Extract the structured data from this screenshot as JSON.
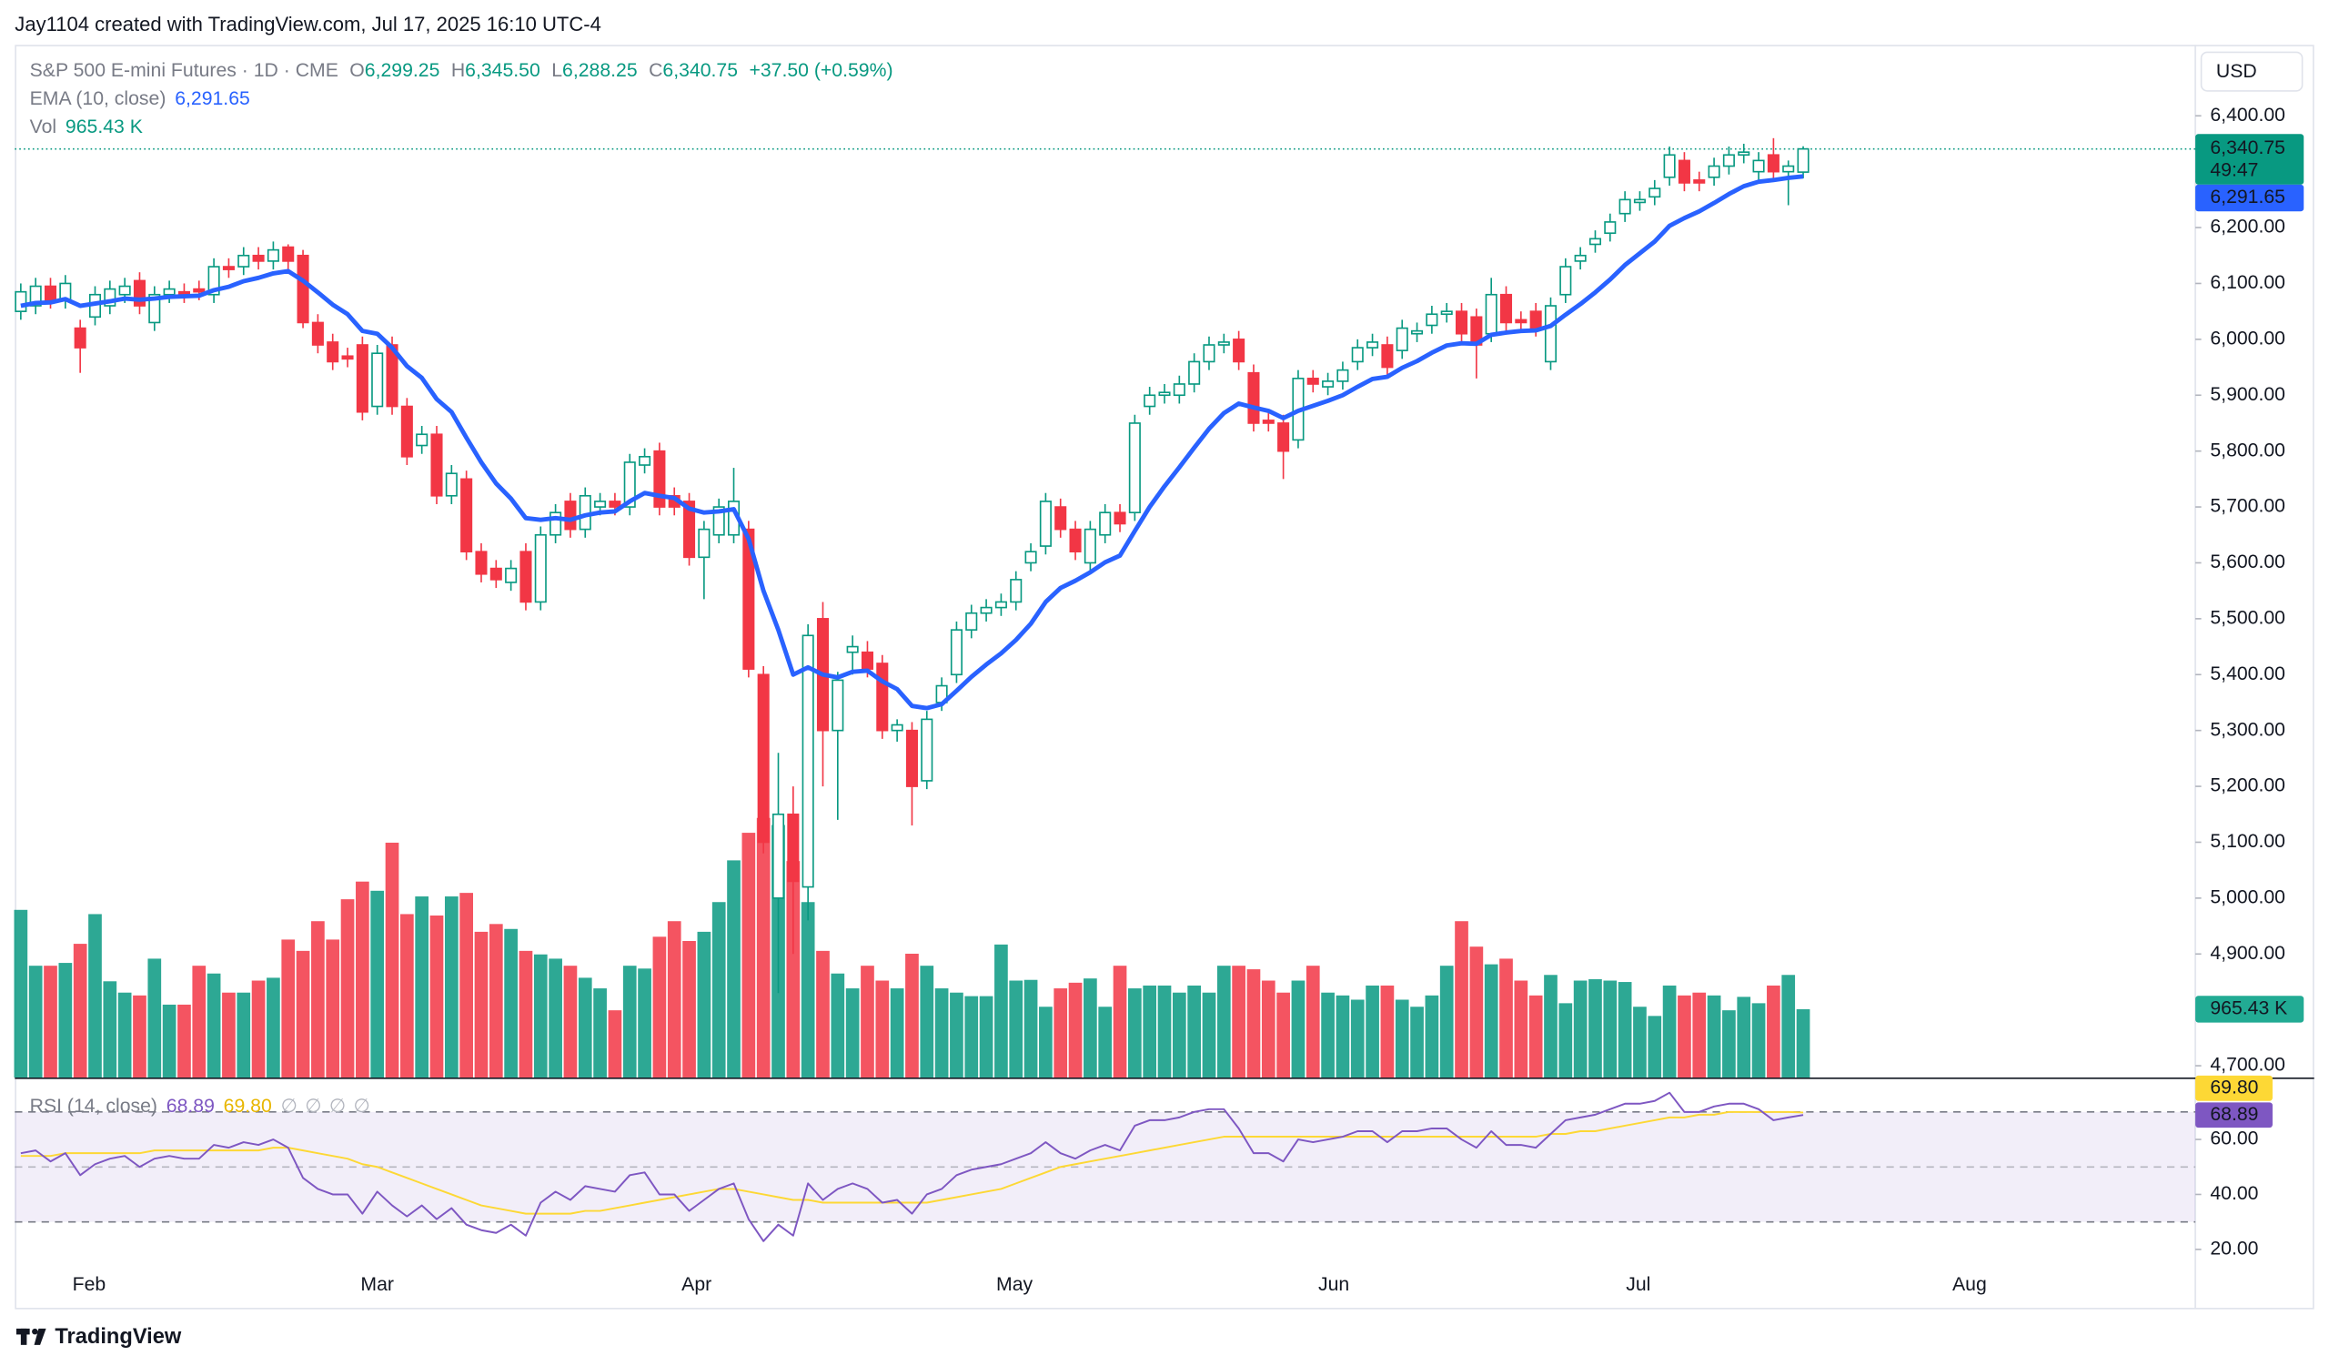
{
  "credit": "Jay1104 created with TradingView.com, Jul 17, 2025 16:10 UTC-4",
  "brand": "TradingView",
  "currency": "USD",
  "chart_data": {
    "type": "candlestick",
    "title": "S&P 500 E-mini Futures · 1D · CME",
    "quote": {
      "O": "O",
      "open": "6,299.25",
      "H": "H",
      "high": "6,345.50",
      "L": "L",
      "low": "6,288.25",
      "C": "C",
      "close": "6,340.75",
      "change": "+37.50 (+0.59%)"
    },
    "countdown": "49:47",
    "ema_title": "EMA (10, close)",
    "ema_label": "6,291.65",
    "vol_title": "Vol",
    "volume_label": "965.43 K",
    "rsi_title": "RSI (14, close)",
    "rsi_label": "68.89",
    "rsi_ma_label": "69.80",
    "rsi_extras": [
      "∅",
      "∅",
      "∅",
      "∅"
    ],
    "x_labels": [
      "Feb",
      "Mar",
      "Apr",
      "May",
      "Jun",
      "Jul",
      "Aug"
    ],
    "up_color": "#089981",
    "down_color": "#f23645",
    "ema_color": "#2962ff",
    "rsi_color": "#7e57c2",
    "rsi_ma_color": "#fdd835",
    "ylim": [
      4679,
      6527
    ],
    "yticks": [
      {
        "value": 6400,
        "label": "6,400.00"
      },
      {
        "value": 6300,
        "label": "6,300.00"
      },
      {
        "value": 6200,
        "label": "6,200.00"
      },
      {
        "value": 6100,
        "label": "6,100.00"
      },
      {
        "value": 6000,
        "label": "6,000.00"
      },
      {
        "value": 5900,
        "label": "5,900.00"
      },
      {
        "value": 5800,
        "label": "5,800.00"
      },
      {
        "value": 5700,
        "label": "5,700.00"
      },
      {
        "value": 5600,
        "label": "5,600.00"
      },
      {
        "value": 5500,
        "label": "5,500.00"
      },
      {
        "value": 5400,
        "label": "5,400.00"
      },
      {
        "value": 5300,
        "label": "5,300.00"
      },
      {
        "value": 5200,
        "label": "5,200.00"
      },
      {
        "value": 5100,
        "label": "5,100.00"
      },
      {
        "value": 5000,
        "label": "5,000.00"
      },
      {
        "value": 4900,
        "label": "4,900.00"
      },
      {
        "value": 4700,
        "label": "4,700.00"
      }
    ],
    "rsi_ylim": [
      12,
      82
    ],
    "rsi_yticks": [
      {
        "value": 60,
        "label": "60.00"
      },
      {
        "value": 40,
        "label": "40.00"
      },
      {
        "value": 20,
        "label": "20.00"
      }
    ],
    "rsi_levels": [
      70,
      50,
      30
    ],
    "ohlc": [
      [
        6050,
        6100,
        6035,
        6085
      ],
      [
        6060,
        6110,
        6045,
        6095
      ],
      [
        6095,
        6110,
        6055,
        6070
      ],
      [
        6070,
        6115,
        6055,
        6100
      ],
      [
        6020,
        6035,
        5940,
        5985
      ],
      [
        6040,
        6095,
        6025,
        6080
      ],
      [
        6060,
        6105,
        6045,
        6090
      ],
      [
        6080,
        6110,
        6065,
        6095
      ],
      [
        6105,
        6120,
        6045,
        6060
      ],
      [
        6030,
        6095,
        6015,
        6080
      ],
      [
        6080,
        6105,
        6065,
        6090
      ],
      [
        6085,
        6100,
        6065,
        6080
      ],
      [
        6090,
        6105,
        6070,
        6085
      ],
      [
        6080,
        6145,
        6065,
        6130
      ],
      [
        6130,
        6145,
        6110,
        6125
      ],
      [
        6130,
        6165,
        6115,
        6150
      ],
      [
        6150,
        6165,
        6125,
        6140
      ],
      [
        6140,
        6175,
        6125,
        6160
      ],
      [
        6165,
        6170,
        6125,
        6140
      ],
      [
        6150,
        6160,
        6020,
        6030
      ],
      [
        6030,
        6045,
        5975,
        5990
      ],
      [
        5995,
        6010,
        5945,
        5960
      ],
      [
        5970,
        5985,
        5950,
        5965
      ],
      [
        5990,
        6005,
        5855,
        5870
      ],
      [
        5880,
        5990,
        5865,
        5975
      ],
      [
        5990,
        6005,
        5865,
        5880
      ],
      [
        5880,
        5895,
        5775,
        5790
      ],
      [
        5810,
        5845,
        5795,
        5830
      ],
      [
        5830,
        5845,
        5705,
        5720
      ],
      [
        5720,
        5775,
        5705,
        5760
      ],
      [
        5750,
        5765,
        5605,
        5620
      ],
      [
        5620,
        5635,
        5565,
        5580
      ],
      [
        5590,
        5605,
        5555,
        5570
      ],
      [
        5565,
        5605,
        5550,
        5590
      ],
      [
        5620,
        5635,
        5515,
        5530
      ],
      [
        5530,
        5665,
        5515,
        5650
      ],
      [
        5650,
        5705,
        5635,
        5690
      ],
      [
        5710,
        5725,
        5645,
        5660
      ],
      [
        5660,
        5735,
        5645,
        5720
      ],
      [
        5700,
        5725,
        5685,
        5710
      ],
      [
        5710,
        5725,
        5685,
        5700
      ],
      [
        5700,
        5795,
        5685,
        5780
      ],
      [
        5775,
        5805,
        5760,
        5790
      ],
      [
        5800,
        5815,
        5685,
        5700
      ],
      [
        5720,
        5735,
        5685,
        5700
      ],
      [
        5710,
        5725,
        5595,
        5610
      ],
      [
        5610,
        5675,
        5535,
        5660
      ],
      [
        5650,
        5715,
        5635,
        5700
      ],
      [
        5650,
        5770,
        5635,
        5710
      ],
      [
        5660,
        5675,
        5395,
        5410
      ],
      [
        5400,
        5415,
        5080,
        5100
      ],
      [
        5000,
        5260,
        4830,
        5150
      ],
      [
        5150,
        5200,
        4900,
        5030
      ],
      [
        5020,
        5490,
        4960,
        5470
      ],
      [
        5500,
        5530,
        5200,
        5300
      ],
      [
        5300,
        5405,
        5140,
        5390
      ],
      [
        5440,
        5470,
        5400,
        5450
      ],
      [
        5440,
        5460,
        5395,
        5410
      ],
      [
        5420,
        5435,
        5285,
        5300
      ],
      [
        5300,
        5320,
        5280,
        5310
      ],
      [
        5300,
        5315,
        5130,
        5200
      ],
      [
        5210,
        5335,
        5195,
        5320
      ],
      [
        5350,
        5395,
        5335,
        5380
      ],
      [
        5400,
        5495,
        5385,
        5480
      ],
      [
        5480,
        5525,
        5465,
        5510
      ],
      [
        5510,
        5535,
        5495,
        5520
      ],
      [
        5520,
        5545,
        5505,
        5530
      ],
      [
        5530,
        5585,
        5515,
        5570
      ],
      [
        5600,
        5635,
        5585,
        5620
      ],
      [
        5630,
        5725,
        5615,
        5710
      ],
      [
        5700,
        5715,
        5645,
        5660
      ],
      [
        5660,
        5675,
        5605,
        5620
      ],
      [
        5600,
        5675,
        5585,
        5660
      ],
      [
        5650,
        5705,
        5635,
        5690
      ],
      [
        5690,
        5705,
        5655,
        5670
      ],
      [
        5690,
        5865,
        5675,
        5850
      ],
      [
        5880,
        5915,
        5865,
        5900
      ],
      [
        5900,
        5920,
        5885,
        5905
      ],
      [
        5900,
        5935,
        5885,
        5920
      ],
      [
        5920,
        5975,
        5905,
        5960
      ],
      [
        5960,
        6005,
        5945,
        5990
      ],
      [
        5990,
        6010,
        5975,
        5995
      ],
      [
        6000,
        6015,
        5945,
        5960
      ],
      [
        5940,
        5955,
        5835,
        5850
      ],
      [
        5855,
        5870,
        5835,
        5850
      ],
      [
        5850,
        5865,
        5750,
        5800
      ],
      [
        5820,
        5945,
        5805,
        5930
      ],
      [
        5930,
        5945,
        5905,
        5920
      ],
      [
        5915,
        5940,
        5900,
        5925
      ],
      [
        5925,
        5960,
        5910,
        5945
      ],
      [
        5960,
        6000,
        5945,
        5985
      ],
      [
        5985,
        6010,
        5970,
        5995
      ],
      [
        5990,
        6005,
        5935,
        5950
      ],
      [
        5980,
        6035,
        5965,
        6020
      ],
      [
        6010,
        6030,
        5995,
        6015
      ],
      [
        6025,
        6060,
        6010,
        6045
      ],
      [
        6045,
        6065,
        6030,
        6050
      ],
      [
        6050,
        6065,
        5995,
        6010
      ],
      [
        6040,
        6055,
        5930,
        5990
      ],
      [
        6010,
        6110,
        5995,
        6080
      ],
      [
        6080,
        6095,
        6015,
        6030
      ],
      [
        6035,
        6050,
        6015,
        6030
      ],
      [
        6050,
        6065,
        6005,
        6020
      ],
      [
        5960,
        6075,
        5945,
        6060
      ],
      [
        6080,
        6145,
        6065,
        6130
      ],
      [
        6140,
        6165,
        6125,
        6150
      ],
      [
        6170,
        6195,
        6155,
        6180
      ],
      [
        6190,
        6225,
        6175,
        6210
      ],
      [
        6225,
        6265,
        6210,
        6250
      ],
      [
        6245,
        6265,
        6230,
        6250
      ],
      [
        6255,
        6285,
        6240,
        6270
      ],
      [
        6290,
        6345,
        6275,
        6330
      ],
      [
        6320,
        6335,
        6265,
        6280
      ],
      [
        6285,
        6300,
        6265,
        6280
      ],
      [
        6290,
        6325,
        6275,
        6310
      ],
      [
        6310,
        6345,
        6295,
        6330
      ],
      [
        6330,
        6350,
        6315,
        6335
      ],
      [
        6300,
        6335,
        6285,
        6320
      ],
      [
        6330,
        6360,
        6285,
        6300
      ],
      [
        6300,
        6320,
        6240,
        6310
      ],
      [
        6299.25,
        6345.5,
        6288.25,
        6340.75
      ]
    ],
    "volume": [
      2370,
      1580,
      1580,
      1620,
      1890,
      2310,
      1360,
      1200,
      1160,
      1680,
      1030,
      1030,
      1580,
      1470,
      1200,
      1200,
      1370,
      1410,
      1950,
      1790,
      2210,
      1950,
      2520,
      2770,
      2640,
      3320,
      2310,
      2560,
      2290,
      2560,
      2610,
      2060,
      2170,
      2100,
      1790,
      1740,
      1680,
      1580,
      1410,
      1260,
      950,
      1580,
      1540,
      1990,
      2210,
      1930,
      2060,
      2480,
      3070,
      3460,
      3670,
      3570,
      3060,
      2480,
      1790,
      1470,
      1260,
      1580,
      1370,
      1260,
      1750,
      1580,
      1260,
      1200,
      1150,
      1150,
      1880,
      1370,
      1380,
      1000,
      1260,
      1340,
      1400,
      1000,
      1580,
      1260,
      1300,
      1300,
      1200,
      1300,
      1200,
      1580,
      1580,
      1530,
      1370,
      1200,
      1370,
      1580,
      1200,
      1160,
      1100,
      1300,
      1300,
      1100,
      1000,
      1160,
      1580,
      2210,
      1850,
      1600,
      1680,
      1370,
      1160,
      1450,
      1050,
      1370,
      1390,
      1370,
      1350,
      1000,
      870,
      1300,
      1160,
      1200,
      1160,
      950,
      1140,
      1050,
      1300,
      1450,
      965.43
    ],
    "ema": [
      6060,
      6065,
      6066,
      6072,
      6060,
      6064,
      6068,
      6073,
      6071,
      6073,
      6076,
      6077,
      6078,
      6088,
      6094,
      6104,
      6110,
      6118,
      6122,
      6105,
      6084,
      6062,
      6045,
      6015,
      6010,
      5985,
      5952,
      5931,
      5893,
      5870,
      5824,
      5780,
      5742,
      5715,
      5680,
      5677,
      5680,
      5677,
      5685,
      5690,
      5692,
      5710,
      5725,
      5720,
      5716,
      5697,
      5690,
      5692,
      5696,
      5643,
      5550,
      5480,
      5400,
      5413,
      5400,
      5395,
      5405,
      5407,
      5388,
      5374,
      5344,
      5340,
      5347,
      5371,
      5396,
      5418,
      5438,
      5462,
      5491,
      5530,
      5555,
      5568,
      5583,
      5601,
      5613,
      5657,
      5700,
      5737,
      5771,
      5806,
      5840,
      5868,
      5885,
      5878,
      5872,
      5859,
      5872,
      5881,
      5890,
      5900,
      5915,
      5929,
      5933,
      5949,
      5961,
      5976,
      5989,
      5993,
      5992,
      6008,
      6012,
      6015,
      6016,
      6024,
      6044,
      6063,
      6084,
      6107,
      6133,
      6154,
      6175,
      6203,
      6217,
      6229,
      6244,
      6260,
      6274,
      6282,
      6285,
      6289,
      6291.65
    ],
    "rsi": [
      55,
      56,
      52,
      55,
      47,
      51,
      53,
      54,
      50,
      53,
      54,
      53,
      53,
      58,
      57,
      59,
      58,
      60,
      57,
      46,
      42,
      40,
      40,
      33,
      41,
      36,
      32,
      36,
      31,
      35,
      29,
      27,
      26,
      29,
      25,
      37,
      41,
      38,
      43,
      42,
      41,
      47,
      48,
      40,
      40,
      34,
      38,
      42,
      44,
      31,
      23,
      29,
      25,
      44,
      38,
      42,
      44,
      42,
      37,
      38,
      33,
      40,
      42,
      47,
      49,
      50,
      51,
      53,
      55,
      59,
      55,
      53,
      56,
      58,
      56,
      65,
      67,
      67,
      68,
      70,
      71,
      71,
      64,
      55,
      55,
      52,
      60,
      59,
      60,
      61,
      63,
      63,
      59,
      63,
      63,
      64,
      64,
      60,
      57,
      63,
      58,
      58,
      57,
      62,
      67,
      68,
      69,
      71,
      73,
      73,
      74,
      77,
      70,
      70,
      72,
      73,
      73,
      71,
      67,
      68,
      68.89
    ],
    "rsi_ma": [
      54,
      54,
      54,
      55,
      55,
      55,
      55,
      55,
      55,
      56,
      56,
      56,
      56,
      56,
      56,
      56,
      56,
      57,
      57,
      56,
      55,
      54,
      53,
      51,
      50,
      48,
      46,
      44,
      42,
      40,
      38,
      36,
      35,
      34,
      33,
      33,
      33,
      33,
      34,
      34,
      35,
      36,
      37,
      38,
      39,
      40,
      41,
      42,
      42,
      41,
      40,
      39,
      38,
      38,
      37,
      37,
      37,
      37,
      37,
      37,
      37,
      37,
      38,
      39,
      40,
      41,
      42,
      44,
      46,
      48,
      50,
      51,
      52,
      53,
      54,
      55,
      56,
      57,
      58,
      59,
      60,
      61,
      61,
      61,
      61,
      61,
      61,
      61,
      61,
      61,
      61,
      61,
      61,
      61,
      61,
      61,
      61,
      61,
      61,
      61,
      61,
      61,
      61,
      62,
      62,
      63,
      63,
      64,
      65,
      66,
      67,
      68,
      68,
      69,
      69,
      70,
      70,
      70,
      70,
      70,
      69.8
    ]
  }
}
